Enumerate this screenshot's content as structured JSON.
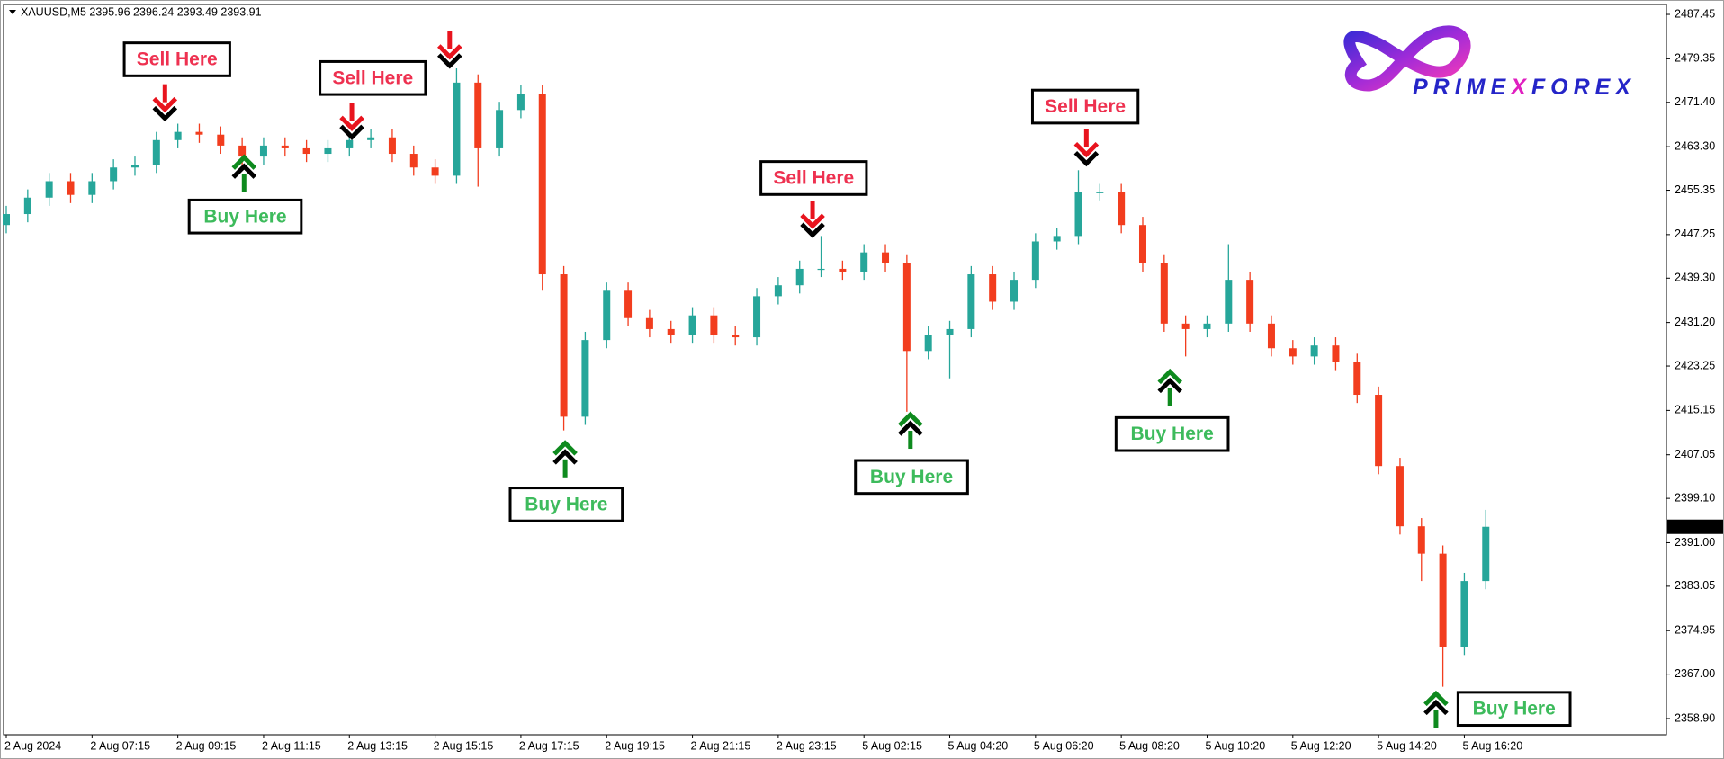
{
  "chart_data": {
    "type": "candlestick",
    "title": "XAUUSD,M5  2395.96 2396.24 2393.49 2393.91",
    "categories": [
      "2 Aug 2024",
      null,
      null,
      null,
      "2 Aug 07:15",
      null,
      null,
      null,
      "2 Aug 09:15",
      null,
      null,
      null,
      "2 Aug 11:15",
      null,
      null,
      null,
      "2 Aug 13:15",
      null,
      null,
      null,
      "2 Aug 15:15",
      null,
      null,
      null,
      "2 Aug 17:15",
      null,
      null,
      null,
      "2 Aug 19:15",
      null,
      null,
      null,
      "2 Aug 21:15",
      null,
      null,
      null,
      "2 Aug 23:15",
      null,
      null,
      null,
      "5 Aug 02:15",
      null,
      null,
      null,
      "5 Aug 04:20",
      null,
      null,
      null,
      "5 Aug 06:20",
      null,
      null,
      null,
      "5 Aug 08:20",
      null,
      null,
      null,
      "5 Aug 10:20",
      null,
      null,
      null,
      "5 Aug 12:20",
      null,
      null,
      null,
      "5 Aug 14:20",
      null,
      null,
      null,
      "5 Aug 16:20",
      null
    ],
    "open": [
      2449,
      2451,
      2454,
      2457,
      2454.5,
      2457,
      2459.5,
      2460,
      2464.5,
      2466,
      2465.5,
      2463.5,
      2461.5,
      2463.5,
      2463,
      2462,
      2463,
      2464.5,
      2465,
      2462,
      2459.5,
      2458,
      2475,
      2463,
      2470,
      2473,
      2440,
      2414,
      2428,
      2437,
      2432,
      2430,
      2429,
      2432.5,
      2429,
      2428.5,
      2436,
      2438,
      2441,
      2441,
      2440.5,
      2444,
      2442,
      2426,
      2429,
      2430,
      2440,
      2435,
      2439,
      2446,
      2447,
      2455,
      2455,
      2449,
      2442,
      2431,
      2430,
      2431,
      2439,
      2431,
      2426.5,
      2425,
      2427,
      2424,
      2418,
      2405,
      2394,
      2389,
      2372,
      2384
    ],
    "high": [
      2452.5,
      2455.5,
      2458.5,
      2458.5,
      2458.5,
      2461,
      2461.5,
      2466,
      2467.5,
      2467.5,
      2467,
      2465,
      2465,
      2465,
      2464.5,
      2464.5,
      2466,
      2466.5,
      2466.5,
      2463.5,
      2461,
      2477.6,
      2476.5,
      2471.5,
      2474.5,
      2474.5,
      2441.5,
      2429.5,
      2438.5,
      2438.5,
      2433.5,
      2431.5,
      2434,
      2434,
      2430.5,
      2437.5,
      2439.5,
      2442.5,
      2447,
      2442.5,
      2445.5,
      2445.5,
      2443.5,
      2430.5,
      2431.5,
      2441.5,
      2441.5,
      2440.5,
      2447.5,
      2448.5,
      2459,
      2456.5,
      2456.5,
      2450.5,
      2443.5,
      2432.5,
      2432.5,
      2445.5,
      2440.5,
      2432.5,
      2428,
      2428.5,
      2428.5,
      2425.5,
      2419.5,
      2406.5,
      2395.5,
      2390.5,
      2385.5,
      2397
    ],
    "low": [
      2447.5,
      2449.5,
      2452.5,
      2453,
      2453,
      2455.5,
      2458,
      2458.5,
      2463,
      2464,
      2462,
      2460,
      2460,
      2461.5,
      2460.5,
      2460.5,
      2461.5,
      2463,
      2460.5,
      2458,
      2456.5,
      2456.5,
      2456,
      2461.5,
      2468.5,
      2437,
      2411.5,
      2412.5,
      2426.5,
      2430.5,
      2428.5,
      2427.5,
      2427.5,
      2427.5,
      2427,
      2427,
      2434.5,
      2436.5,
      2439.5,
      2439,
      2439,
      2440.5,
      2414.9,
      2424.5,
      2421,
      2428.5,
      2433.5,
      2433.5,
      2437.5,
      2444.5,
      2445.5,
      2453.5,
      2447.5,
      2440.5,
      2429.5,
      2425,
      2428.5,
      2429.5,
      2429.5,
      2425,
      2423.5,
      2423.5,
      2422.5,
      2416.5,
      2403.5,
      2392.5,
      2384,
      2364.7,
      2370.5,
      2382.5
    ],
    "close": [
      2451,
      2454,
      2457,
      2454.5,
      2457,
      2459.5,
      2460,
      2464.5,
      2466,
      2465.5,
      2463.5,
      2461.5,
      2463.5,
      2463,
      2462,
      2463,
      2464.5,
      2465,
      2462,
      2459.5,
      2458,
      2475,
      2463,
      2470,
      2473,
      2440,
      2414,
      2428,
      2437,
      2432,
      2430,
      2429,
      2432.5,
      2429,
      2428.5,
      2436,
      2438,
      2441,
      2441,
      2440.5,
      2444,
      2442,
      2426,
      2429,
      2430,
      2440,
      2435,
      2439,
      2446,
      2447,
      2455,
      2455,
      2449,
      2442,
      2431,
      2430,
      2431,
      2439,
      2431,
      2426.5,
      2425,
      2427,
      2424,
      2418,
      2405,
      2394,
      2389,
      2372,
      2384,
      2393.91
    ],
    "up_color": "#26a69a",
    "down_color": "#f23d1e",
    "ylim": [
      2355.94,
      2489.26
    ],
    "yticks": [
      2487.45,
      2479.35,
      {
        "value": 2471.4,
        "label": "2471.40"
      },
      {
        "value": 2463.3,
        "label": "2463.30"
      },
      2455.35,
      2447.25,
      {
        "value": 2439.3,
        "label": "2439.30"
      },
      {
        "value": 2431.2,
        "label": "2431.20"
      },
      2423.25,
      2415.15,
      2407.05,
      {
        "value": 2399.1,
        "label": "2399.10"
      },
      {
        "value": 2391,
        "label": "2391.00"
      },
      2383.05,
      2374.95,
      {
        "value": 2367,
        "label": "2367.00"
      },
      {
        "value": 2358.9,
        "label": "2358.90"
      }
    ],
    "annotations": [
      "Sell Here",
      "Sell Here",
      "Sell Here",
      "Sell Here",
      "Buy Here",
      "Buy Here",
      "Buy Here",
      "Buy Here",
      "Buy Here"
    ],
    "logo": [
      "PRIME",
      "X",
      "FOREX"
    ]
  }
}
